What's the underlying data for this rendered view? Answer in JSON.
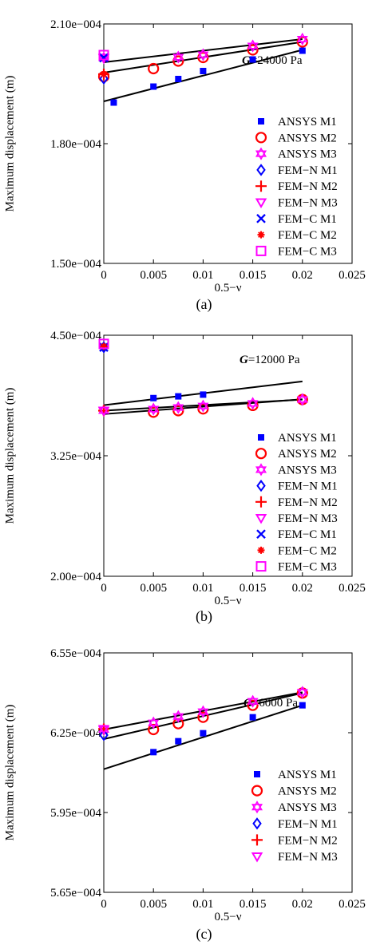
{
  "chart_data": [
    {
      "type": "scatter",
      "panel_label": "(a)",
      "annotation": {
        "var": "G",
        "text": "=24000 Pa"
      },
      "xlabel": "0.5−ν",
      "ylabel": "Maximum displacement (m)",
      "xlim": [
        0,
        0.025
      ],
      "ylim": [
        0.00015,
        0.00021
      ],
      "xticks": [
        0,
        0.005,
        0.01,
        0.015,
        0.02,
        0.025
      ],
      "xtick_labels": [
        "0",
        "0.005",
        "0.01",
        "0.015",
        "0.02",
        "0.025"
      ],
      "yticks": [
        0.00015,
        0.00018,
        0.00021
      ],
      "ytick_labels": [
        "1.50e−004",
        "1.80e−004",
        "2.10e−004"
      ],
      "series": [
        {
          "name": "ANSYS M1",
          "marker": "square",
          "color": "#0000ff",
          "x": [
            0.001,
            0.005,
            0.0075,
            0.01,
            0.015,
            0.02
          ],
          "y": [
            0.0001903,
            0.0001943,
            0.0001962,
            0.0001982,
            0.0002011,
            0.0002033
          ]
        },
        {
          "name": "ANSYS M2",
          "marker": "circle",
          "color": "#ff0000",
          "x": [
            0,
            0.005,
            0.0075,
            0.01,
            0.015,
            0.02
          ],
          "y": [
            0.0001968,
            0.0001988,
            0.0002007,
            0.0002016,
            0.0002035,
            0.0002055
          ]
        },
        {
          "name": "ANSYS M3",
          "marker": "hexagram",
          "color": "#ff00ff",
          "x": [
            0,
            0.0075,
            0.01,
            0.015,
            0.02
          ],
          "y": [
            0.0002015,
            0.0002017,
            0.0002023,
            0.0002045,
            0.0002062
          ]
        },
        {
          "name": "FEM−N M1",
          "marker": "diamond",
          "color": "#0000ff",
          "x": [
            0
          ],
          "y": [
            0.0001963
          ]
        },
        {
          "name": "FEM−N M2",
          "marker": "plus",
          "color": "#ff0000",
          "x": [
            0
          ],
          "y": [
            0.0001974
          ]
        },
        {
          "name": "FEM−N M3",
          "marker": "triangle-down",
          "color": "#ff00ff",
          "x": [
            0
          ],
          "y": [
            0.0002015
          ]
        },
        {
          "name": "FEM−C M1",
          "marker": "x",
          "color": "#0000ff",
          "x": [
            0
          ],
          "y": [
            0.0002015
          ]
        },
        {
          "name": "FEM−C M2",
          "marker": "asterisk",
          "color": "#ff0000",
          "x": [
            0
          ],
          "y": [
            0.0001974
          ]
        },
        {
          "name": "FEM−C M3",
          "marker": "square-open",
          "color": "#ff00ff",
          "x": [
            0
          ],
          "y": [
            0.0002022
          ]
        }
      ],
      "fit_lines": [
        {
          "x": [
            0,
            0.02
          ],
          "y": [
            0.0001906,
            0.0002035
          ]
        },
        {
          "x": [
            0,
            0.02
          ],
          "y": [
            0.0001978,
            0.0002055
          ]
        },
        {
          "x": [
            0,
            0.02
          ],
          "y": [
            0.0002004,
            0.0002062
          ]
        }
      ]
    },
    {
      "type": "scatter",
      "panel_label": "(b)",
      "annotation": {
        "var": "G",
        "text": "=12000 Pa"
      },
      "xlabel": "0.5−ν",
      "ylabel": "Maximum displacement (m)",
      "xlim": [
        0,
        0.025
      ],
      "ylim": [
        0.0002,
        0.00045
      ],
      "xticks": [
        0,
        0.005,
        0.01,
        0.015,
        0.02,
        0.025
      ],
      "xtick_labels": [
        "0",
        "0.005",
        "0.01",
        "0.015",
        "0.02",
        "0.025"
      ],
      "yticks": [
        0.0002,
        0.000325,
        0.00045
      ],
      "ytick_labels": [
        "2.00e−004",
        "3.25e−004",
        "4.50e−004"
      ],
      "series": [
        {
          "name": "ANSYS M1",
          "marker": "square",
          "color": "#0000ff",
          "x": [
            0.005,
            0.0075,
            0.01
          ],
          "y": [
            0.0003848,
            0.0003866,
            0.0003884
          ]
        },
        {
          "name": "ANSYS M2",
          "marker": "circle",
          "color": "#ff0000",
          "x": [
            0.005,
            0.0075,
            0.01,
            0.015,
            0.02
          ],
          "y": [
            0.0003702,
            0.0003718,
            0.0003736,
            0.0003772,
            0.0003833
          ]
        },
        {
          "name": "ANSYS M3",
          "marker": "hexagram",
          "color": "#ff00ff",
          "x": [
            0,
            0.005,
            0.0075,
            0.01,
            0.015,
            0.02
          ],
          "y": [
            0.0003718,
            0.0003734,
            0.000375,
            0.0003766,
            0.0003793,
            0.0003833
          ]
        },
        {
          "name": "FEM−N M1",
          "marker": "diamond",
          "color": "#0000ff",
          "x": [
            0
          ],
          "y": [
            0.0004375
          ]
        },
        {
          "name": "FEM−N M2",
          "marker": "plus",
          "color": "#ff0000",
          "x": [
            0
          ],
          "y": [
            0.0003718
          ]
        },
        {
          "name": "FEM−N M3",
          "marker": "triangle-down",
          "color": "#ff00ff",
          "x": [
            0
          ],
          "y": [
            0.0003718
          ]
        },
        {
          "name": "FEM−C M1",
          "marker": "x",
          "color": "#0000ff",
          "x": [
            0
          ],
          "y": [
            0.0004375
          ]
        },
        {
          "name": "FEM−C M2",
          "marker": "asterisk",
          "color": "#ff0000",
          "x": [
            0
          ],
          "y": [
            0.0004384
          ]
        },
        {
          "name": "FEM−C M3",
          "marker": "square-open",
          "color": "#ff00ff",
          "x": [
            0
          ],
          "y": [
            0.000441
          ]
        }
      ],
      "fit_lines": [
        {
          "x": [
            0,
            0.02
          ],
          "y": [
            0.0003775,
            0.0004021
          ]
        },
        {
          "x": [
            0,
            0.02
          ],
          "y": [
            0.0003718,
            0.0003833
          ]
        },
        {
          "x": [
            0,
            0.02
          ],
          "y": [
            0.0003682,
            0.0003836
          ]
        }
      ]
    },
    {
      "type": "scatter",
      "panel_label": "(c)",
      "annotation": {
        "var": "G",
        "text": "=6000 Pa"
      },
      "xlabel": "0.5−ν",
      "ylabel": "Maximum displacement (m)",
      "xlim": [
        0,
        0.025
      ],
      "ylim": [
        0.000565,
        0.000655
      ],
      "xticks": [
        0,
        0.005,
        0.01,
        0.015,
        0.02,
        0.025
      ],
      "xtick_labels": [
        "0",
        "0.005",
        "0.01",
        "0.015",
        "0.02",
        "0.025"
      ],
      "yticks": [
        0.000565,
        0.000595,
        0.000625,
        0.000655
      ],
      "ytick_labels": [
        "5.65e−004",
        "5.95e−004",
        "6.25e−004",
        "6.55e−004"
      ],
      "series": [
        {
          "name": "ANSYS M1",
          "marker": "square",
          "color": "#0000ff",
          "x": [
            0.005,
            0.0075,
            0.01,
            0.015,
            0.02
          ],
          "y": [
            0.0006177,
            0.0006218,
            0.0006248,
            0.0006308,
            0.0006353
          ]
        },
        {
          "name": "ANSYS M2",
          "marker": "circle",
          "color": "#ff0000",
          "x": [
            0.005,
            0.0075,
            0.01,
            0.015,
            0.02
          ],
          "y": [
            0.0006262,
            0.0006284,
            0.0006308,
            0.0006353,
            0.0006399
          ]
        },
        {
          "name": "ANSYS M3",
          "marker": "hexagram",
          "color": "#ff00ff",
          "x": [
            0,
            0.005,
            0.0075,
            0.01,
            0.015,
            0.02
          ],
          "y": [
            0.0006262,
            0.0006287,
            0.0006311,
            0.0006329,
            0.0006368,
            0.0006402
          ]
        },
        {
          "name": "FEM−N M1",
          "marker": "diamond",
          "color": "#0000ff",
          "x": [
            0
          ],
          "y": [
            0.0006241
          ]
        },
        {
          "name": "FEM−N M2",
          "marker": "plus",
          "color": "#ff0000",
          "x": [
            0
          ],
          "y": [
            0.0006264
          ]
        },
        {
          "name": "FEM−N M3",
          "marker": "triangle-down",
          "color": "#ff00ff",
          "x": [
            0
          ],
          "y": [
            0.0006264
          ]
        }
      ],
      "fit_lines": [
        {
          "x": [
            0,
            0.02
          ],
          "y": [
            0.0006113,
            0.0006353
          ]
        },
        {
          "x": [
            0,
            0.02
          ],
          "y": [
            0.0006226,
            0.0006399
          ]
        },
        {
          "x": [
            0,
            0.02
          ],
          "y": [
            0.0006262,
            0.0006402
          ]
        }
      ]
    }
  ]
}
